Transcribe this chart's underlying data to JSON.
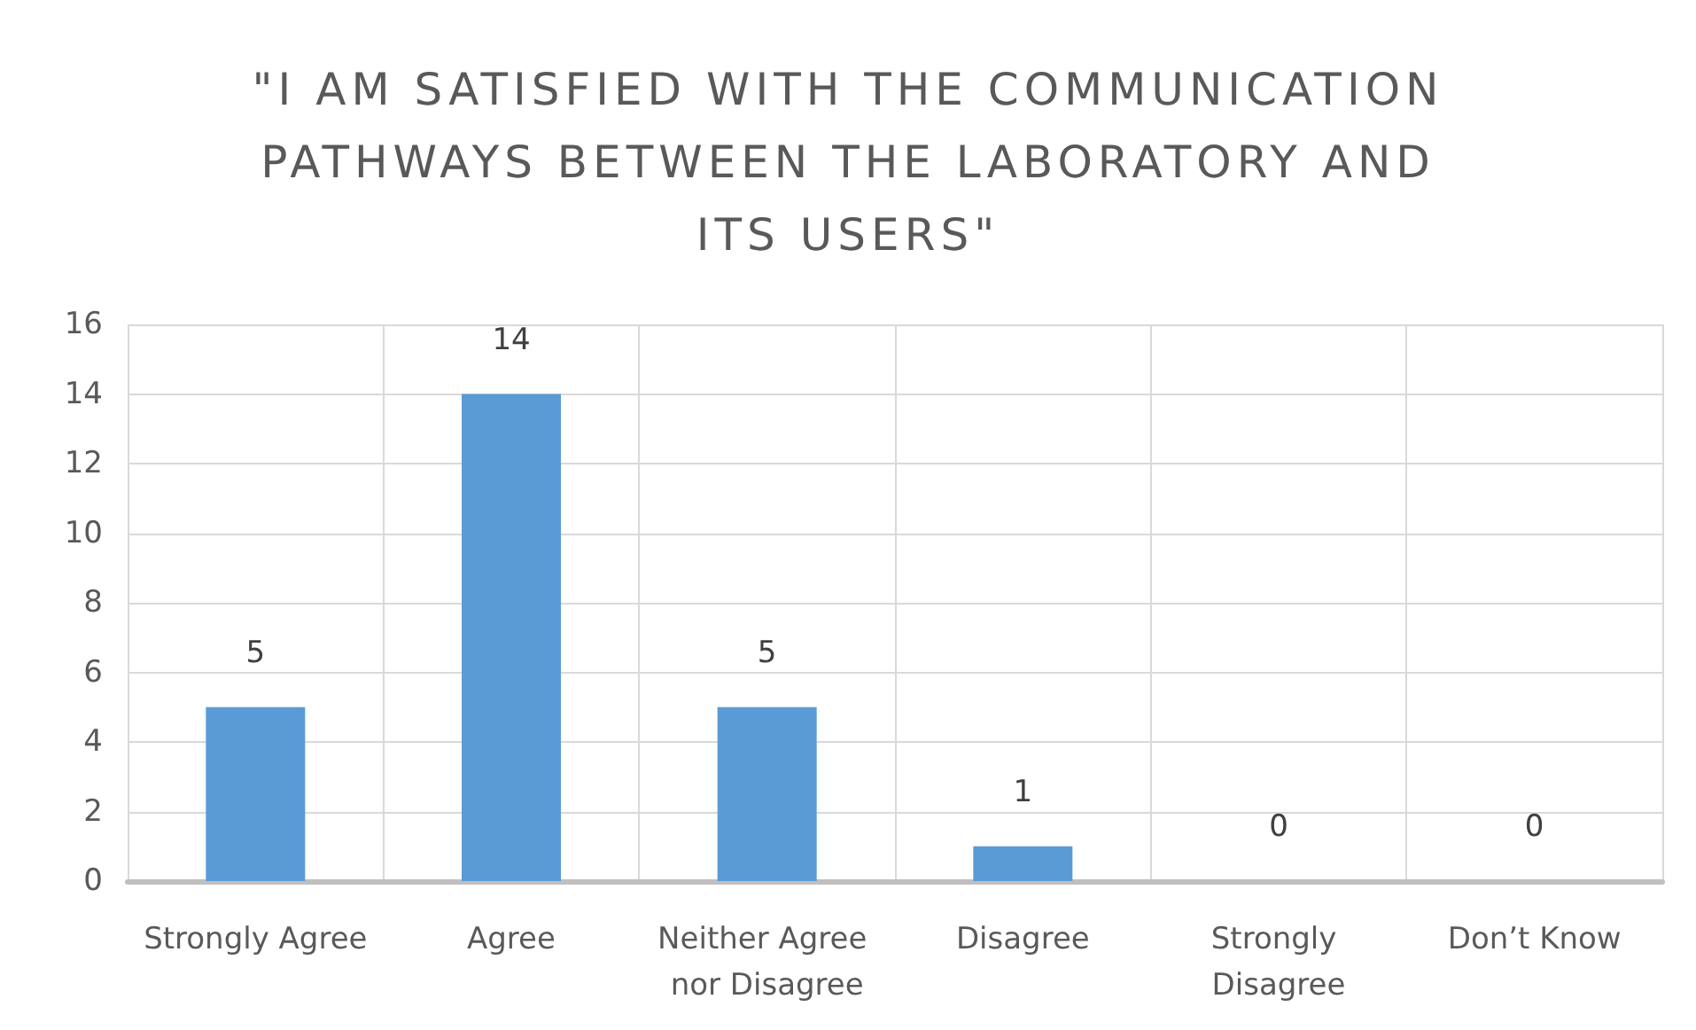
{
  "chart_data": {
    "type": "bar",
    "title": "\"I AM SATISFIED WITH THE COMMUNICATION PATHWAYS BETWEEN THE LABORATORY AND ITS USERS\"",
    "categories": [
      "Strongly Agree",
      "Agree",
      "Neither Agree nor Disagree",
      "Disagree",
      "Strongly Disagree",
      "Don’t Know"
    ],
    "values": [
      5,
      14,
      5,
      1,
      0,
      0
    ],
    "color": "#5b9bd5",
    "ylim": [
      0,
      16
    ],
    "yticks": [
      0,
      2,
      4,
      6,
      8,
      10,
      12,
      14,
      16
    ],
    "grid": true,
    "data_labels": true
  }
}
